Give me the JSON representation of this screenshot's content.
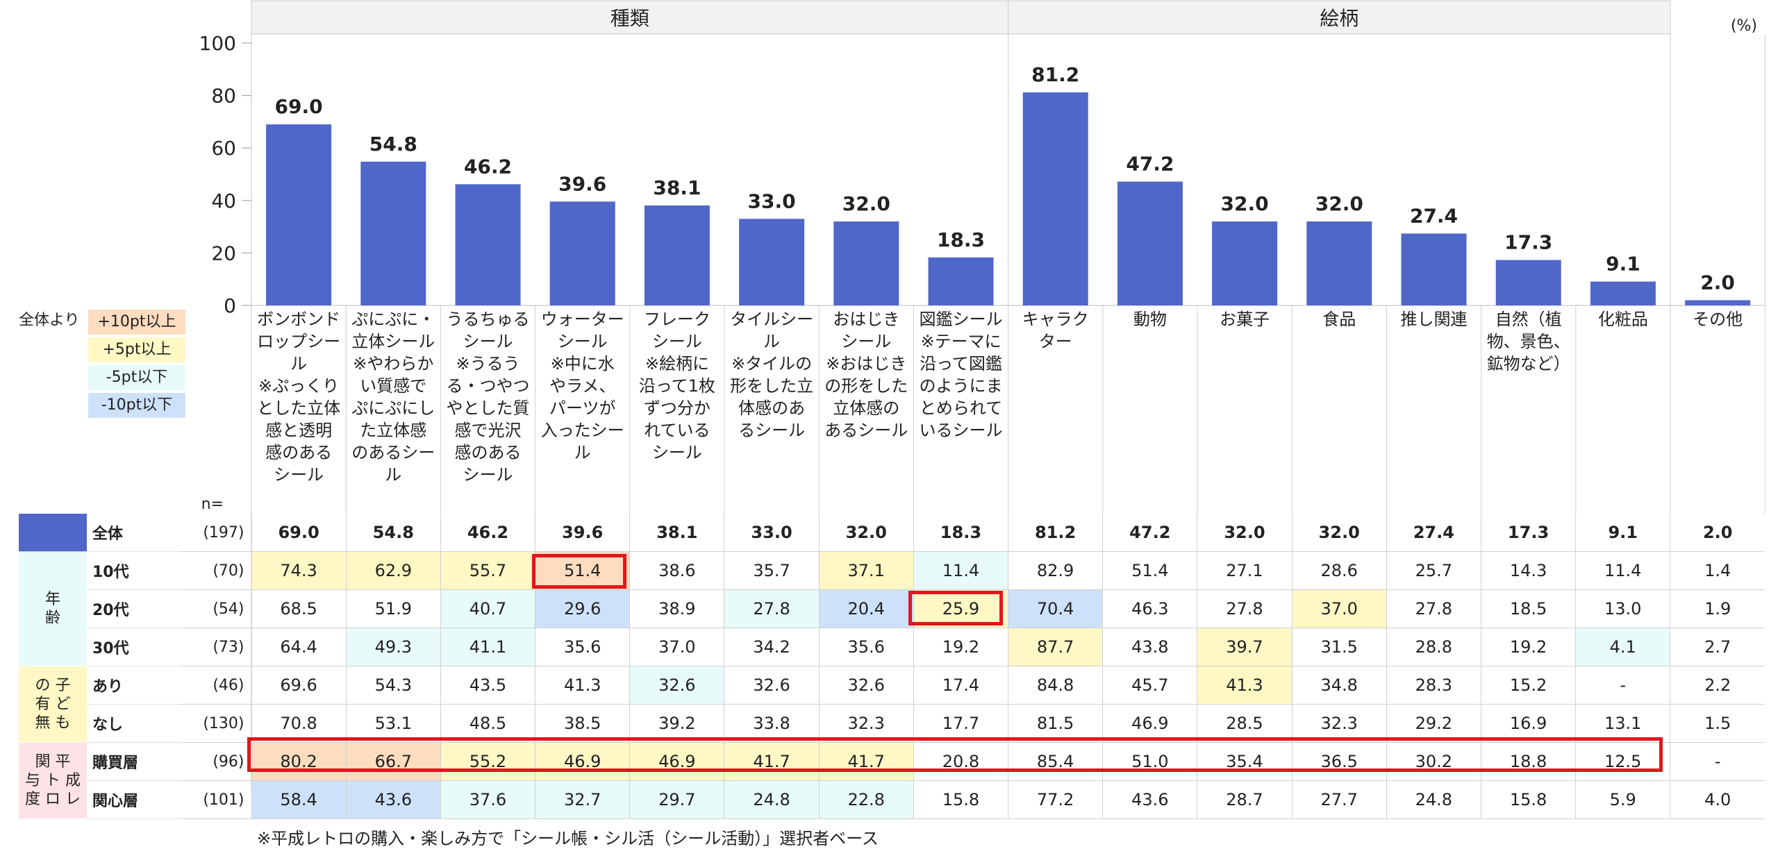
{
  "percent_unit": "(%)",
  "n_label": "n=",
  "legend": {
    "title": "全体より",
    "items": [
      {
        "label": "+10pt以上",
        "color": "#fddcc0"
      },
      {
        "label": "+5pt以上",
        "color": "#fff8c5"
      },
      {
        "label": "-5pt以下",
        "color": "#e8fbfb"
      },
      {
        "label": "-10pt以下",
        "color": "#cde2fa"
      }
    ]
  },
  "footnote": "※平成レトロの購入・楽しみ方で「シール帳・シル活（シール活動）」選択者ベース",
  "chart_data": {
    "type": "bar",
    "group_headers": [
      {
        "label": "種類",
        "span": 8
      },
      {
        "label": "絵柄",
        "span": 7
      }
    ],
    "categories": [
      "ボンボンドロップシール\n※ぷっくりとした立体感と透明感のあるシール",
      "ぷにぷに・立体シール\n※やわらかい質感でぷにぷにした立体感のあるシール",
      "うるちゅるシール\n※うるうる・つやつやとした質感で光沢感のあるシール",
      "ウォーターシール\n※中に水やラメ、パーツが入ったシール",
      "フレークシール\n※絵柄に沿って1枚ずつ分かれているシール",
      "タイルシール\n※タイルの形をした立体感のあるシール",
      "おはじきシール\n※おはじきの形をした立体感のあるシール",
      "図鑑シール\n※テーマに沿って図鑑のようにまとめられているシール",
      "キャラクター",
      "動物",
      "お菓子",
      "食品",
      "推し関連",
      "自然（植物、景色、鉱物など）",
      "化粧品",
      "その他"
    ],
    "category_lines": [
      [
        "ボンボンド",
        "ロップシー",
        "ル",
        "※ぷっくり",
        "とした立体",
        "感と透明",
        "感のある",
        "シール"
      ],
      [
        "ぷにぷに・",
        "立体シール",
        "※やわらか",
        "い質感で",
        "ぷにぷにし",
        "た立体感",
        "のあるシー",
        "ル"
      ],
      [
        "うるちゅる",
        "シール",
        "※うるう",
        "る・つやつ",
        "やとした質",
        "感で光沢",
        "感のある",
        "シール"
      ],
      [
        "ウォーター",
        "シール",
        "※中に水",
        "やラメ、",
        "パーツが",
        "入ったシー",
        "ル"
      ],
      [
        "フレーク",
        "シール",
        "※絵柄に",
        "沿って1枚",
        "ずつ分か",
        "れている",
        "シール"
      ],
      [
        "タイルシー",
        "ル",
        "※タイルの",
        "形をした立",
        "体感のあ",
        "るシール"
      ],
      [
        "おはじき",
        "シール",
        "※おはじき",
        "の形をした",
        "立体感の",
        "あるシール"
      ],
      [
        "図鑑シール",
        "※テーマに",
        "沿って図鑑",
        "のようにま",
        "とめられて",
        "いるシール"
      ],
      [
        "キャラク",
        "ター"
      ],
      [
        "動物"
      ],
      [
        "お菓子"
      ],
      [
        "食品"
      ],
      [
        "推し関連"
      ],
      [
        "自然（植",
        "物、景色、",
        "鉱物など）"
      ],
      [
        "化粧品"
      ],
      [
        "その他"
      ]
    ],
    "values": [
      69.0,
      54.8,
      46.2,
      39.6,
      38.1,
      33.0,
      32.0,
      18.3,
      81.2,
      47.2,
      32.0,
      32.0,
      27.4,
      17.3,
      9.1,
      2.0
    ],
    "value_labels": [
      "69.0",
      "54.8",
      "46.2",
      "39.6",
      "38.1",
      "33.0",
      "32.0",
      "18.3",
      "81.2",
      "47.2",
      "32.0",
      "32.0",
      "27.4",
      "17.3",
      "9.1",
      "2.0"
    ],
    "ylim": [
      0,
      100
    ],
    "yticks": [
      "0",
      "20",
      "40",
      "60",
      "80",
      "100"
    ],
    "bar_color": "#4f67c9",
    "table": {
      "rows": [
        {
          "group": "",
          "label": "全体",
          "n": "(197)",
          "values": [
            "69.0",
            "54.8",
            "46.2",
            "39.6",
            "38.1",
            "33.0",
            "32.0",
            "18.3",
            "81.2",
            "47.2",
            "32.0",
            "32.0",
            "27.4",
            "17.3",
            "9.1",
            "2.0"
          ],
          "shade": [
            "",
            "",
            "",
            "",
            "",
            "",
            "",
            "",
            "",
            "",
            "",
            "",
            "",
            "",
            "",
            ""
          ]
        },
        {
          "group": "年齢",
          "label": "10代",
          "n": "(70)",
          "values": [
            "74.3",
            "62.9",
            "55.7",
            "51.4",
            "38.6",
            "35.7",
            "37.1",
            "11.4",
            "82.9",
            "51.4",
            "27.1",
            "28.6",
            "25.7",
            "14.3",
            "11.4",
            "1.4"
          ],
          "shade": [
            "y",
            "y",
            "y",
            "o",
            "",
            "",
            "y",
            "c",
            "",
            "",
            "",
            "",
            "",
            "",
            "",
            ""
          ]
        },
        {
          "group": "年齢",
          "label": "20代",
          "n": "(54)",
          "values": [
            "68.5",
            "51.9",
            "40.7",
            "29.6",
            "38.9",
            "27.8",
            "20.4",
            "25.9",
            "70.4",
            "46.3",
            "27.8",
            "37.0",
            "27.8",
            "18.5",
            "13.0",
            "1.9"
          ],
          "shade": [
            "",
            "",
            "c",
            "b",
            "",
            "c",
            "b",
            "y",
            "b",
            "",
            "",
            "y",
            "",
            "",
            "",
            ""
          ]
        },
        {
          "group": "年齢",
          "label": "30代",
          "n": "(73)",
          "values": [
            "64.4",
            "49.3",
            "41.1",
            "35.6",
            "37.0",
            "34.2",
            "35.6",
            "19.2",
            "87.7",
            "43.8",
            "39.7",
            "31.5",
            "28.8",
            "19.2",
            "4.1",
            "2.7"
          ],
          "shade": [
            "",
            "c",
            "c",
            "",
            "",
            "",
            "",
            "",
            "y",
            "",
            "y",
            "",
            "",
            "",
            "c",
            ""
          ]
        },
        {
          "group": "子どもの有無",
          "label": "あり",
          "n": "(46)",
          "values": [
            "69.6",
            "54.3",
            "43.5",
            "41.3",
            "32.6",
            "32.6",
            "32.6",
            "17.4",
            "84.8",
            "45.7",
            "41.3",
            "34.8",
            "28.3",
            "15.2",
            "-",
            "2.2"
          ],
          "shade": [
            "",
            "",
            "",
            "",
            "c",
            "",
            "",
            "",
            "",
            "",
            "y",
            "",
            "",
            "",
            "",
            ""
          ]
        },
        {
          "group": "子どもの有無",
          "label": "なし",
          "n": "(130)",
          "values": [
            "70.8",
            "53.1",
            "48.5",
            "38.5",
            "39.2",
            "33.8",
            "32.3",
            "17.7",
            "81.5",
            "46.9",
            "28.5",
            "32.3",
            "29.2",
            "16.9",
            "13.1",
            "1.5"
          ],
          "shade": [
            "",
            "",
            "",
            "",
            "",
            "",
            "",
            "",
            "",
            "",
            "",
            "",
            "",
            "",
            "",
            ""
          ]
        },
        {
          "group": "平成レトロ関与度",
          "label": "購買層",
          "n": "(96)",
          "values": [
            "80.2",
            "66.7",
            "55.2",
            "46.9",
            "46.9",
            "41.7",
            "41.7",
            "20.8",
            "85.4",
            "51.0",
            "35.4",
            "36.5",
            "30.2",
            "18.8",
            "12.5",
            "-"
          ],
          "shade": [
            "o",
            "o",
            "y",
            "y",
            "y",
            "y",
            "y",
            "",
            "",
            "",
            "",
            "",
            "",
            "",
            "",
            ""
          ]
        },
        {
          "group": "平成レトロ関与度",
          "label": "関心層",
          "n": "(101)",
          "values": [
            "58.4",
            "43.6",
            "37.6",
            "32.7",
            "29.7",
            "24.8",
            "22.8",
            "15.8",
            "77.2",
            "43.6",
            "28.7",
            "27.7",
            "24.8",
            "15.8",
            "5.9",
            "4.0"
          ],
          "shade": [
            "b",
            "b",
            "c",
            "c",
            "c",
            "c",
            "c",
            "",
            "",
            "",
            "",
            "",
            "",
            "",
            "",
            ""
          ]
        }
      ],
      "groups": [
        {
          "lines": [
            "年",
            "齢"
          ],
          "bg": "#e8fbfb"
        },
        {
          "lines": [
            "の 子",
            "有 ど",
            "無 も"
          ],
          "bg": "#fff8c5"
        },
        {
          "lines": [
            "関 平",
            "与 ト 成",
            "度 ロ レ"
          ],
          "bg": "#fde3e6"
        }
      ]
    }
  }
}
